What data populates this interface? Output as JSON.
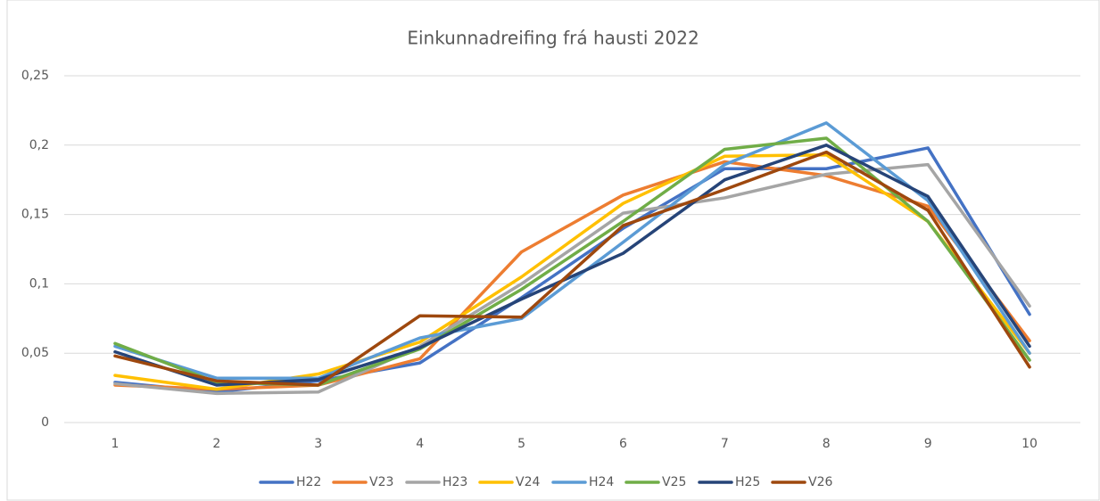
{
  "chart_data": {
    "type": "line",
    "title": "Einkunnadreifing frá hausti 2022",
    "categories": [
      "1",
      "2",
      "3",
      "4",
      "5",
      "6",
      "7",
      "8",
      "9",
      "10"
    ],
    "ylim": [
      0,
      0.25
    ],
    "yticks": [
      0,
      {
        "value": 0.05,
        "label": "0,05"
      },
      {
        "value": 0.1,
        "label": "0,1"
      },
      {
        "value": 0.15,
        "label": "0,15"
      },
      {
        "value": 0.2,
        "label": "0,2"
      },
      {
        "value": 0.25,
        "label": "0,25"
      }
    ],
    "grid": true,
    "legend": "bottom",
    "series": [
      {
        "name": "H22",
        "color": "#4472c4",
        "values": [
          0.029,
          0.022,
          0.03,
          0.043,
          0.09,
          0.14,
          0.183,
          0.183,
          0.198,
          0.078
        ]
      },
      {
        "name": "V23",
        "color": "#ed7d31",
        "values": [
          0.027,
          0.024,
          0.027,
          0.046,
          0.123,
          0.164,
          0.188,
          0.178,
          0.156,
          0.059
        ]
      },
      {
        "name": "H23",
        "color": "#a5a5a5",
        "values": [
          0.028,
          0.021,
          0.022,
          0.055,
          0.1,
          0.151,
          0.162,
          0.179,
          0.186,
          0.084
        ]
      },
      {
        "name": "V24",
        "color": "#ffc000",
        "values": [
          0.034,
          0.024,
          0.035,
          0.058,
          0.105,
          0.158,
          0.192,
          0.193,
          0.145,
          0.05
        ]
      },
      {
        "name": "H24",
        "color": "#5b9bd5",
        "values": [
          0.055,
          0.032,
          0.032,
          0.061,
          0.075,
          0.13,
          0.186,
          0.216,
          0.16,
          0.05
        ]
      },
      {
        "name": "V25",
        "color": "#70ad47",
        "values": [
          0.057,
          0.029,
          0.027,
          0.053,
          0.096,
          0.145,
          0.197,
          0.205,
          0.145,
          0.045
        ]
      },
      {
        "name": "H25",
        "color": "#264478",
        "values": [
          0.051,
          0.027,
          0.031,
          0.054,
          0.089,
          0.122,
          0.175,
          0.2,
          0.163,
          0.055
        ]
      },
      {
        "name": "V26",
        "color": "#9e480e",
        "values": [
          0.048,
          0.03,
          0.027,
          0.077,
          0.076,
          0.142,
          0.168,
          0.195,
          0.153,
          0.04
        ]
      }
    ]
  }
}
